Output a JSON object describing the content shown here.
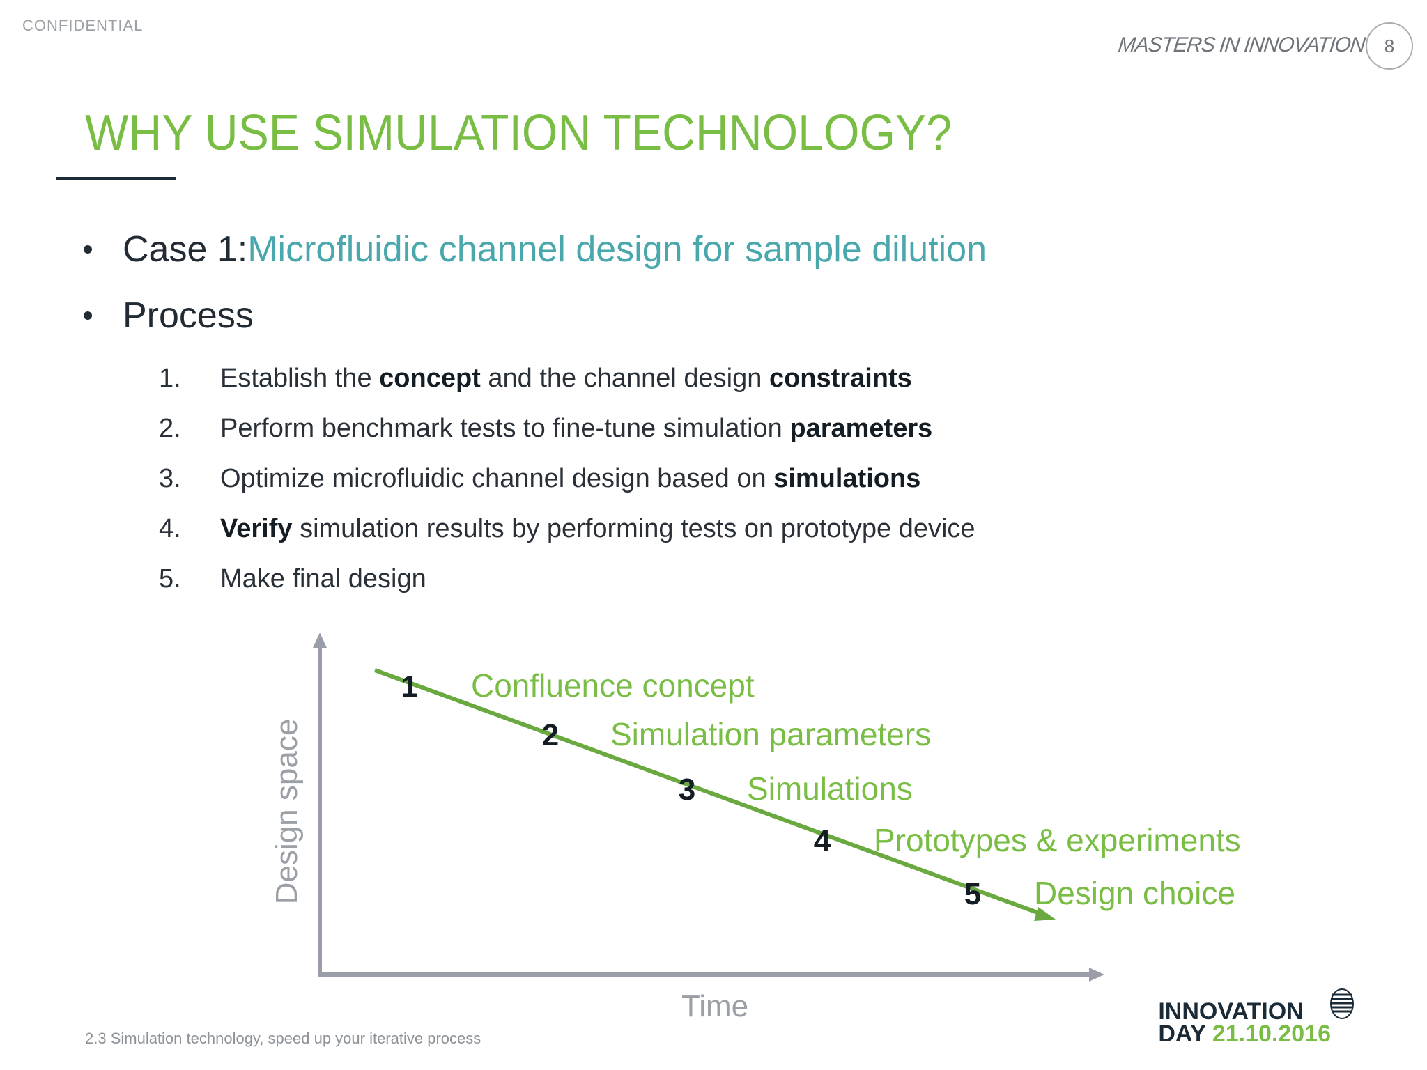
{
  "header": {
    "confidential": "CONFIDENTIAL",
    "brand": "MASTERS IN INNOVATION",
    "page_number": "8"
  },
  "title": "WHY USE SIMULATION TECHNOLOGY?",
  "bullets": [
    {
      "prefix": "Case 1: ",
      "accent": "Microfluidic channel design for sample dilution"
    },
    {
      "prefix": "Process",
      "accent": ""
    }
  ],
  "steps": [
    {
      "num": "1.",
      "parts": [
        {
          "text": "Establish the ",
          "bold": false
        },
        {
          "text": "concept",
          "bold": true
        },
        {
          "text": " and the channel design ",
          "bold": false
        },
        {
          "text": "constraints",
          "bold": true
        }
      ]
    },
    {
      "num": "2.",
      "parts": [
        {
          "text": "Perform benchmark tests to fine-tune simulation ",
          "bold": false
        },
        {
          "text": "parameters",
          "bold": true
        }
      ]
    },
    {
      "num": "3.",
      "parts": [
        {
          "text": "Optimize microfluidic channel design based on ",
          "bold": false
        },
        {
          "text": "simulations",
          "bold": true
        }
      ]
    },
    {
      "num": "4.",
      "parts": [
        {
          "text": "Verify",
          "bold": true
        },
        {
          "text": " simulation results by performing tests on prototype device",
          "bold": false
        }
      ]
    },
    {
      "num": "5.",
      "parts": [
        {
          "text": "Make final design",
          "bold": false
        }
      ]
    }
  ],
  "diagram": {
    "ylabel": "Design space",
    "xlabel": "Time",
    "line_color": "#6aa840",
    "axis_color": "#9b9ea8",
    "milestones": [
      {
        "num": "1",
        "label": "Confluence concept"
      },
      {
        "num": "2",
        "label": "Simulation parameters"
      },
      {
        "num": "3",
        "label": "Simulations"
      },
      {
        "num": "4",
        "label": "Prototypes & experiments"
      },
      {
        "num": "5",
        "label": "Design choice"
      }
    ]
  },
  "footer": "2.3 Simulation technology, speed up your iterative process",
  "logo": {
    "line1": "INNOVATION",
    "line2_word": "DAY",
    "line2_date": "21.10.2016"
  },
  "colors": {
    "accent_green": "#79bd45",
    "accent_teal": "#4aa8ad",
    "dark": "#1a2a36"
  }
}
